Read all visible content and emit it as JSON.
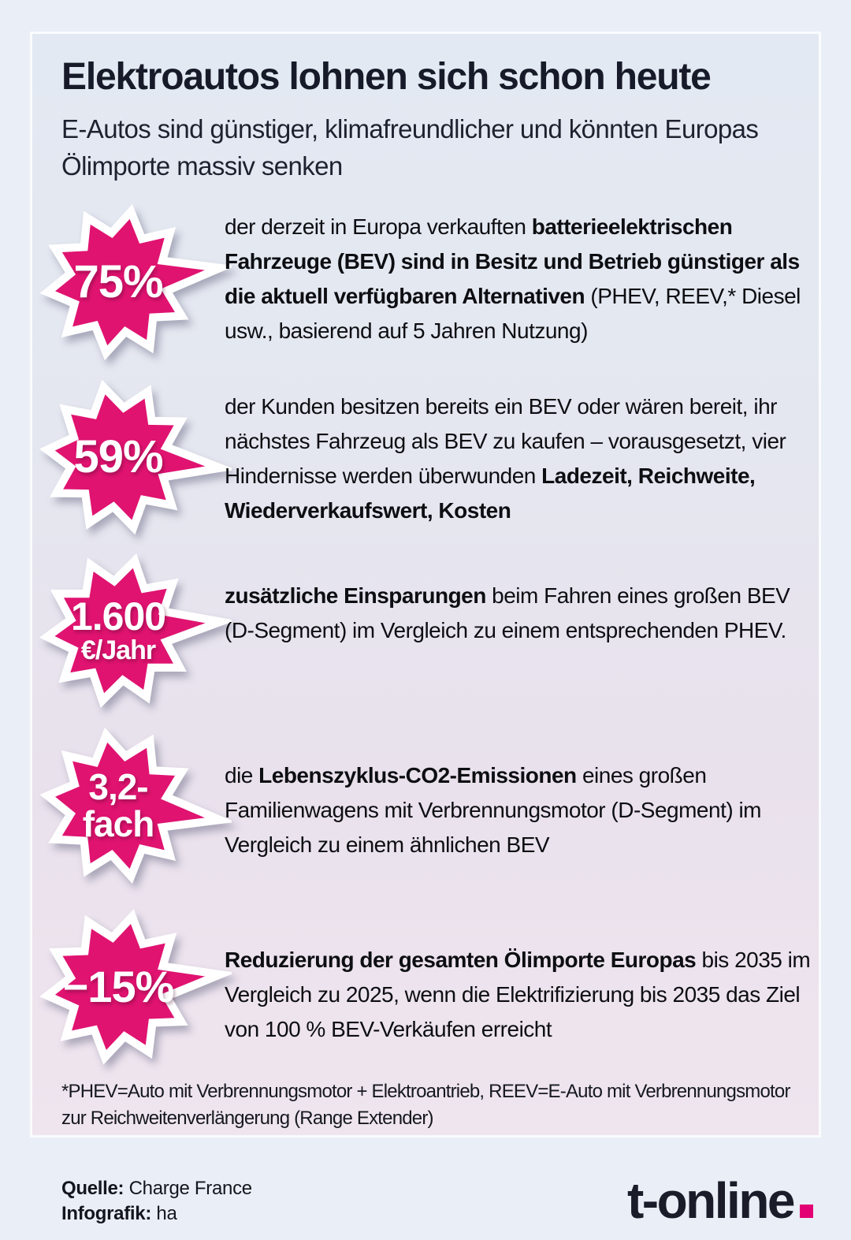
{
  "header": {
    "title": "Elektroautos lohnen sich schon heute",
    "subtitle": "E-Autos sind günstiger, klimafreundlicher und könnten Europas Ölimporte massiv senken"
  },
  "stats": [
    {
      "badge": {
        "value": "75%",
        "unit": ""
      },
      "text_html": "der derzeit in Europa verkauften <b>batterieelektrischen Fahrzeuge (BEV) sind in Besitz und Betrieb günstiger als die aktuell verfügbaren Alternativen</b> (PHEV, REEV,* Diesel usw., basierend auf 5 Jahren Nutzung)"
    },
    {
      "badge": {
        "value": "59%",
        "unit": ""
      },
      "text_html": "der Kunden besitzen bereits ein BEV oder wären bereit, ihr nächstes Fahrzeug als BEV zu kaufen – vorausgesetzt, vier Hindernisse werden überwunden <b>Ladezeit, Reichweite, Wiederverkaufswert, Kosten</b>"
    },
    {
      "badge": {
        "value": "1.600",
        "unit": "€/Jahr"
      },
      "text_html": "<b>zusätzliche Einsparungen</b> beim Fahren eines großen BEV (D-Segment) im Vergleich zu einem entsprechenden PHEV."
    },
    {
      "badge": {
        "value": "3,2-",
        "unit": "fach"
      },
      "text_html": "die <b>Lebenszyklus-CO2-Emissionen</b> eines großen Familienwagens mit Verbrennungsmotor (D-Segment) im Vergleich zu einem ähnlichen BEV"
    },
    {
      "badge": {
        "value": "−15%",
        "unit": ""
      },
      "text_html": "<b>Reduzierung der gesamten Ölimporte Europas</b> bis 2035 im Vergleich zu 2025, wenn die Elektrifizierung bis 2035 das Ziel von 100 % BEV-Verkäufen erreicht"
    }
  ],
  "footnote": "*PHEV=Auto mit Verbrennungsmotor + Elektroantrieb, REEV=E-Auto mit Verbrennungsmotor zur Reichweitenverlängerung (Range Extender)",
  "footer": {
    "source_label": "Quelle:",
    "source": "Charge France",
    "credit_label": "Infografik:",
    "credit": "ha",
    "logo_text": "t-online"
  },
  "colors": {
    "badge_fill": "#E01370",
    "badge_border": "#FFFFFF",
    "logo_dot": "#E20074",
    "card_gradient_top": "#E3E9F2",
    "card_gradient_bottom": "#EFE5EF",
    "text_dark": "#171B29"
  }
}
